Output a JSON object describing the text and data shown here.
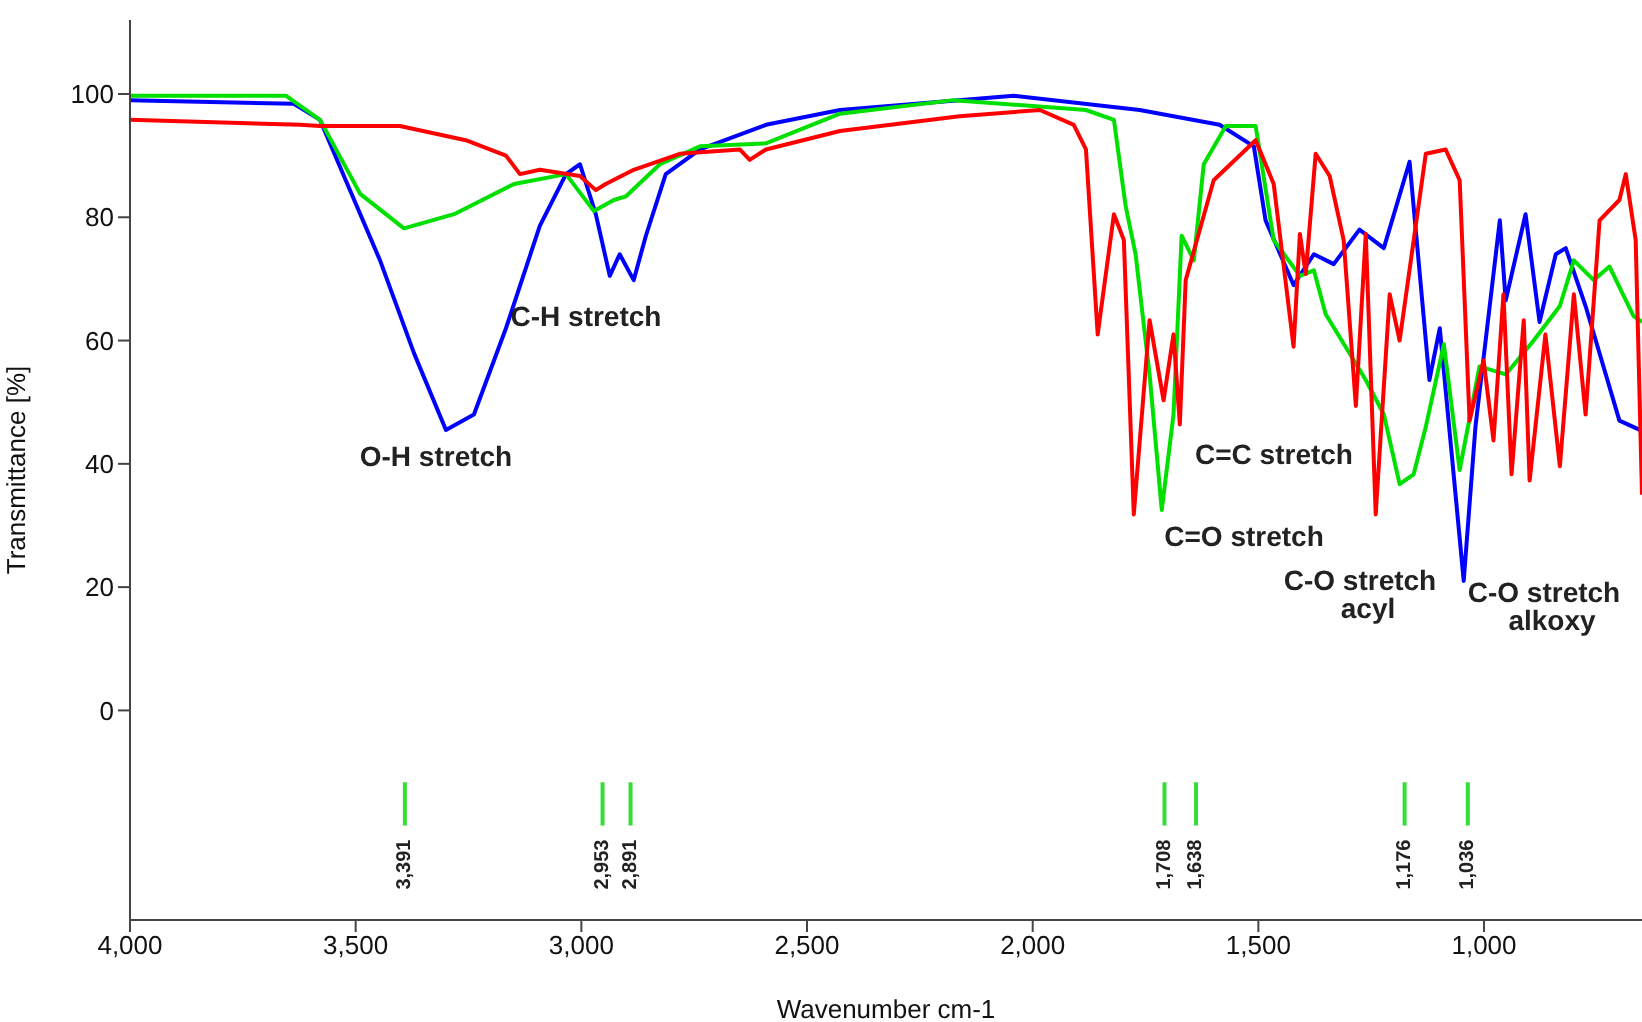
{
  "chart_data": {
    "type": "line",
    "xlabel": "Wavenumber cm-1",
    "ylabel": "Transmittance [%]",
    "xlim": [
      4000,
      650
    ],
    "ylim": [
      -34,
      112
    ],
    "xticks": [
      {
        "value": 4000,
        "label": "4,000"
      },
      {
        "value": 3500,
        "label": "3,500"
      },
      {
        "value": 3000,
        "label": "3,000"
      },
      {
        "value": 2500,
        "label": "2,500"
      },
      {
        "value": 2000,
        "label": "2,000"
      },
      {
        "value": 1500,
        "label": "1,500"
      },
      {
        "value": 1000,
        "label": "1,000"
      }
    ],
    "yticks": [
      0,
      20,
      40,
      60,
      80,
      100
    ],
    "grid": false,
    "marker": "none",
    "line_style": "solid",
    "series": [
      {
        "color": "#0000ff",
        "x": [
          4000,
          3637,
          3579,
          3522,
          3446,
          3371,
          3300,
          3238,
          3167,
          3092,
          3034,
          3003,
          2968,
          2937,
          2915,
          2884,
          2857,
          2813,
          2737,
          2591,
          2427,
          2042,
          1763,
          1586,
          1510,
          1484,
          1422,
          1377,
          1333,
          1276,
          1222,
          1165,
          1121,
          1098,
          1045,
          1019,
          965,
          952,
          908,
          877,
          841,
          819,
          775,
          700,
          655,
          650
        ],
        "values": [
          99,
          98.4,
          95.8,
          86,
          73,
          58,
          45.5,
          48,
          62,
          78.6,
          87,
          88.6,
          80.5,
          70.5,
          74,
          69.8,
          77,
          87,
          91,
          95,
          97.4,
          99.7,
          97.4,
          95,
          91.5,
          79.5,
          69,
          74,
          72.4,
          78,
          75,
          89,
          53.6,
          62,
          21,
          46,
          79.5,
          66.5,
          80.5,
          63,
          74,
          75,
          65.6,
          47,
          45.5,
          45
        ]
      },
      {
        "color": "#00e000",
        "x": [
          4000,
          3654,
          3579,
          3490,
          3393,
          3282,
          3149,
          3034,
          2972,
          2928,
          2901,
          2826,
          2737,
          2591,
          2427,
          2175,
          1882,
          1820,
          1794,
          1772,
          1741,
          1714,
          1688,
          1670,
          1643,
          1621,
          1572,
          1506,
          1466,
          1408,
          1377,
          1351,
          1262,
          1222,
          1187,
          1156,
          1129,
          1089,
          1054,
          1010,
          952,
          890,
          832,
          801,
          757,
          722,
          669,
          650
        ],
        "values": [
          99.7,
          99.7,
          95.8,
          83.8,
          78.2,
          80.5,
          85.4,
          87,
          81,
          82.8,
          83.4,
          88.6,
          91.5,
          92,
          96.8,
          99,
          97.4,
          95.8,
          81.8,
          74,
          54.5,
          32.5,
          48,
          77,
          73,
          88.6,
          94.8,
          94.8,
          76.3,
          70.5,
          71.4,
          64.3,
          53.6,
          48,
          36.7,
          38.3,
          46,
          59.4,
          39,
          55.8,
          54.5,
          60,
          65.6,
          73,
          69.8,
          72,
          64,
          63
        ]
      },
      {
        "color": "#ff0000",
        "x": [
          4000,
          3623,
          3579,
          3402,
          3256,
          3167,
          3136,
          3092,
          3003,
          2968,
          2946,
          2884,
          2782,
          2649,
          2627,
          2591,
          2427,
          2162,
          1984,
          1909,
          1882,
          1856,
          1820,
          1798,
          1776,
          1741,
          1710,
          1688,
          1674,
          1661,
          1599,
          1506,
          1466,
          1422,
          1408,
          1395,
          1373,
          1342,
          1311,
          1284,
          1262,
          1240,
          1209,
          1187,
          1129,
          1085,
          1054,
          1032,
          1001,
          979,
          957,
          939,
          912,
          899,
          864,
          832,
          801,
          775,
          744,
          700,
          686,
          664,
          650
        ],
        "values": [
          95.8,
          95,
          94.8,
          94.8,
          92.5,
          90,
          87,
          87.7,
          86.7,
          84.4,
          85.4,
          87.7,
          90.3,
          91,
          89.3,
          91,
          94,
          96.4,
          97.4,
          95,
          91,
          61,
          80.5,
          76.3,
          31.8,
          63.3,
          50.3,
          61,
          46.4,
          69.8,
          86,
          92.5,
          85.4,
          59,
          77.3,
          70.8,
          90.3,
          86.7,
          76.3,
          49.4,
          77.3,
          31.8,
          67.5,
          60,
          90.3,
          91,
          86,
          47,
          56.8,
          43.8,
          67.5,
          38.3,
          63.3,
          37.3,
          61,
          39.6,
          67.5,
          48,
          79.5,
          82.8,
          87,
          76.3,
          35
        ]
      }
    ],
    "annotations": [
      "O-H stretch",
      "C-H stretch",
      "C=C stretch",
      "C=O stretch",
      "C-O stretch\nacyl",
      "C-O stretch\nalkoxy"
    ],
    "ref_lines": [
      {
        "axis": "x",
        "value": 3391,
        "label": "3,391",
        "color": "#33dd33"
      },
      {
        "axis": "x",
        "value": 2953,
        "label": "2,953",
        "color": "#33dd33"
      },
      {
        "axis": "x",
        "value": 2891,
        "label": "2,891",
        "color": "#33dd33"
      },
      {
        "axis": "x",
        "value": 1708,
        "label": "1,708",
        "color": "#33dd33"
      },
      {
        "axis": "x",
        "value": 1638,
        "label": "1,638",
        "color": "#33dd33"
      },
      {
        "axis": "x",
        "value": 1176,
        "label": "1,176",
        "color": "#33dd33"
      },
      {
        "axis": "x",
        "value": 1036,
        "label": "1,036",
        "color": "#33dd33"
      }
    ]
  }
}
